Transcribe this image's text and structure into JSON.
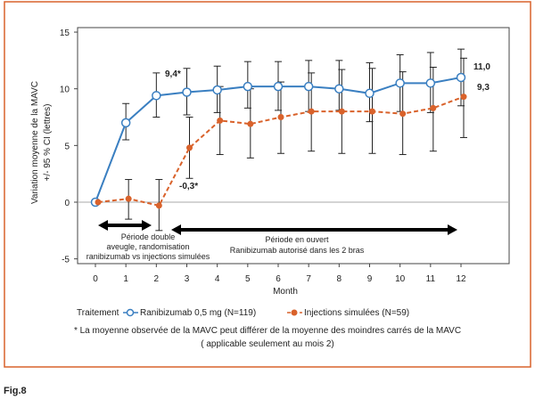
{
  "chart_data": {
    "type": "line",
    "title": "",
    "xlabel": "Month",
    "ylabel": "Variation moyenne de la MAVC +/- 95 % CI (lettres)",
    "ylabel_lines": [
      "Variation moyenne de la MAVC",
      "+/- 95 % CI (lettres)"
    ],
    "x": [
      0,
      1,
      2,
      3,
      4,
      5,
      6,
      7,
      8,
      9,
      10,
      11,
      12
    ],
    "xlim": [
      0,
      12
    ],
    "ylim": [
      -5,
      15
    ],
    "yticks": [
      -5,
      0,
      5,
      10,
      15
    ],
    "xticks": [
      0,
      1,
      2,
      3,
      4,
      5,
      6,
      7,
      8,
      9,
      10,
      11,
      12
    ],
    "grid": false,
    "legend_title": "Traitement",
    "legend_position": "bottom",
    "series": [
      {
        "name": "Ranibizumab 0,5 mg (N=119)",
        "color": "#3a7fc1",
        "marker": "open-circle",
        "style": "solid",
        "values": [
          0,
          7.0,
          9.4,
          9.7,
          9.9,
          10.2,
          10.2,
          10.2,
          10.0,
          9.6,
          10.5,
          10.5,
          11.0
        ],
        "ci_low": [
          null,
          5.5,
          7.5,
          7.7,
          7.9,
          8.3,
          8.1,
          8.0,
          8.1,
          7.1,
          8.0,
          7.9,
          8.5
        ],
        "ci_high": [
          null,
          8.7,
          11.4,
          11.8,
          12.0,
          12.4,
          12.4,
          12.5,
          12.5,
          12.3,
          13.0,
          13.2,
          13.5
        ]
      },
      {
        "name": "Injections simulées (N=59)",
        "color": "#d9622b",
        "marker": "filled-circle",
        "style": "dashed",
        "values": [
          0,
          0.3,
          -0.3,
          4.8,
          7.2,
          6.9,
          7.5,
          8.0,
          8.0,
          8.0,
          7.8,
          8.3,
          9.3
        ],
        "ci_low": [
          null,
          -1.5,
          -2.5,
          2.1,
          4.2,
          3.9,
          4.3,
          4.5,
          4.3,
          4.3,
          4.2,
          4.5,
          5.7
        ],
        "ci_high": [
          null,
          2.0,
          2.0,
          7.5,
          10.2,
          10.0,
          10.6,
          11.4,
          11.7,
          11.8,
          11.5,
          11.9,
          12.7
        ]
      }
    ],
    "annotations": {
      "blue_m2": "9,4*",
      "orange_m2": "-0,3*",
      "blue_m12": "11,0",
      "orange_m12": "9,3",
      "period1": [
        "Période double",
        "aveugle, randomisation",
        "ranibizumab vs injections simulées"
      ],
      "period2": [
        "Période en ouvert",
        "Ranibizumab autorisé dans les 2 bras"
      ]
    },
    "footnote": [
      "* La moyenne observée de la MAVC peut différer de la moyenne des moindres carrés de la MAVC",
      "( applicable seulement au mois 2)"
    ]
  },
  "caption": "Fig.8",
  "colors": {
    "frame": "#d9622b",
    "axis": "#333333"
  }
}
